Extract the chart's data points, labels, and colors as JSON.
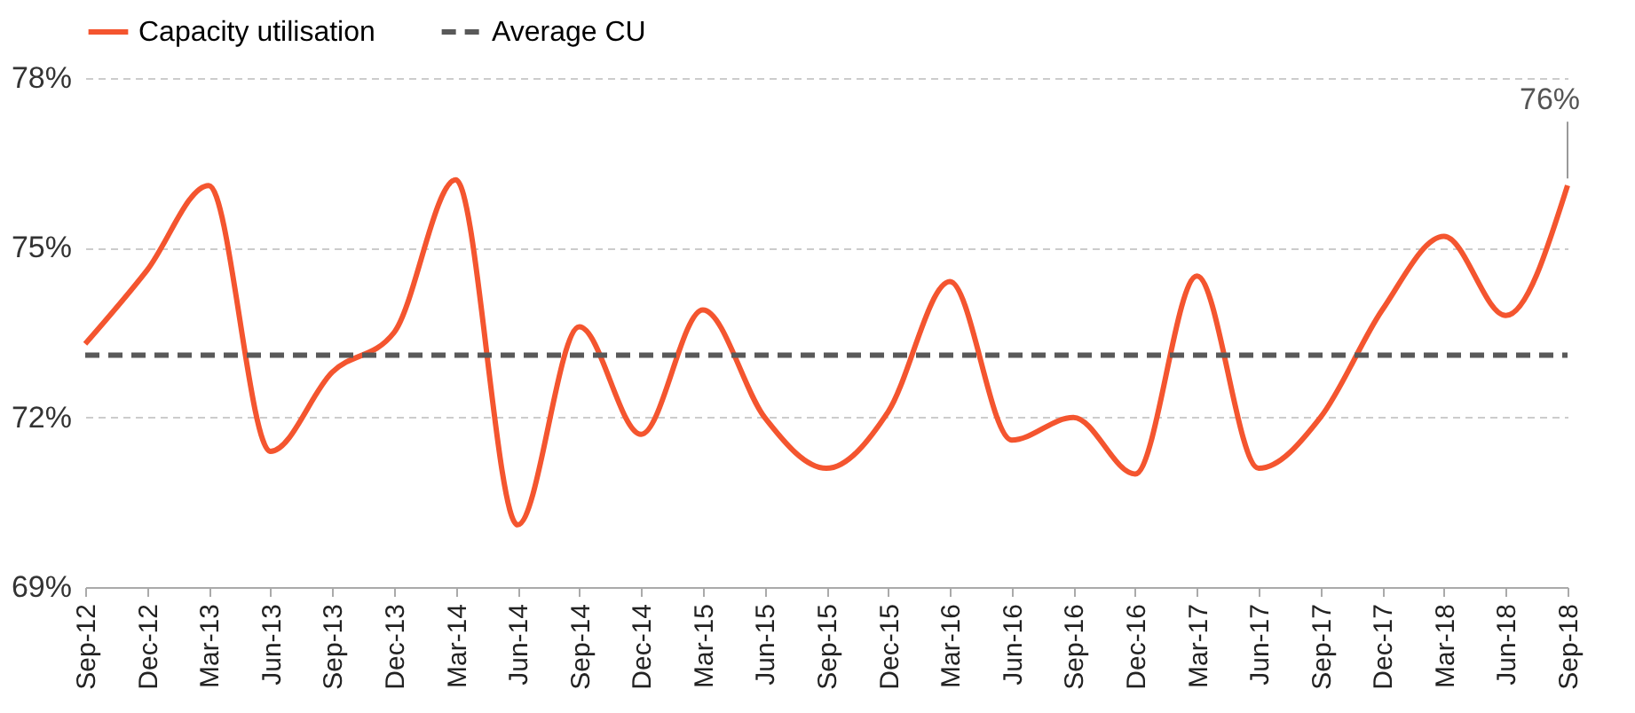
{
  "chart_data": {
    "type": "line",
    "categories": [
      "Sep-12",
      "Dec-12",
      "Mar-13",
      "Jun-13",
      "Sep-13",
      "Dec-13",
      "Mar-14",
      "Jun-14",
      "Sep-14",
      "Dec-14",
      "Mar-15",
      "Jun-15",
      "Sep-15",
      "Dec-15",
      "Mar-16",
      "Jun-16",
      "Sep-16",
      "Dec-16",
      "Mar-17",
      "Jun-17",
      "Sep-17",
      "Dec-17",
      "Mar-18",
      "Jun-18",
      "Sep-18"
    ],
    "series": [
      {
        "name": "Capacity utilisation",
        "color": "#f4552f",
        "line_style": "solid",
        "values": [
          73.3,
          74.6,
          76.1,
          71.4,
          72.8,
          73.5,
          76.2,
          70.1,
          73.6,
          71.7,
          73.9,
          72.0,
          71.1,
          72.1,
          74.4,
          71.6,
          72.0,
          71.0,
          74.5,
          71.1,
          72.0,
          73.9,
          75.2,
          73.8,
          76.1
        ]
      },
      {
        "name": "Average CU",
        "color": "#595959",
        "line_style": "dashed",
        "values": [
          73.1,
          73.1,
          73.1,
          73.1,
          73.1,
          73.1,
          73.1,
          73.1,
          73.1,
          73.1,
          73.1,
          73.1,
          73.1,
          73.1,
          73.1,
          73.1,
          73.1,
          73.1,
          73.1,
          73.1,
          73.1,
          73.1,
          73.1,
          73.1,
          73.1
        ]
      }
    ],
    "ylim": [
      69,
      78
    ],
    "yticks": [
      {
        "value": 69,
        "label": "69%"
      },
      {
        "value": 72,
        "label": "72%"
      },
      {
        "value": 75,
        "label": "75%"
      },
      {
        "value": 78,
        "label": "78%"
      }
    ],
    "grid": "y",
    "legend": "top",
    "marker": "none",
    "annotations": [
      {
        "text": "76%",
        "x": "Sep-18",
        "y": 76.1
      }
    ]
  }
}
